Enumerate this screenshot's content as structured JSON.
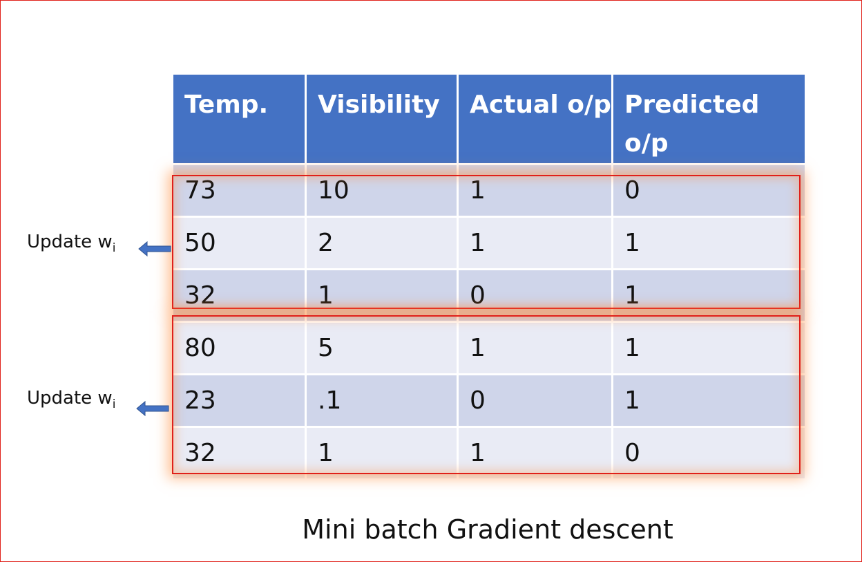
{
  "table": {
    "header": [
      "Temp.",
      "Visibility",
      "Actual o/p",
      "Predicted o/p"
    ],
    "rows": [
      [
        "73",
        "10",
        "1",
        "0"
      ],
      [
        "50",
        "2",
        "1",
        "1"
      ],
      [
        "32",
        "1",
        "0",
        "1"
      ],
      [
        "80",
        "5",
        "1",
        "1"
      ],
      [
        "23",
        ".1",
        "0",
        "1"
      ],
      [
        "32",
        "1",
        "1",
        "0"
      ]
    ]
  },
  "labels": [
    {
      "text": "Update w",
      "subscript": "i"
    },
    {
      "text": "Update w",
      "subscript": "i"
    }
  ],
  "caption": "Mini batch Gradient descent"
}
